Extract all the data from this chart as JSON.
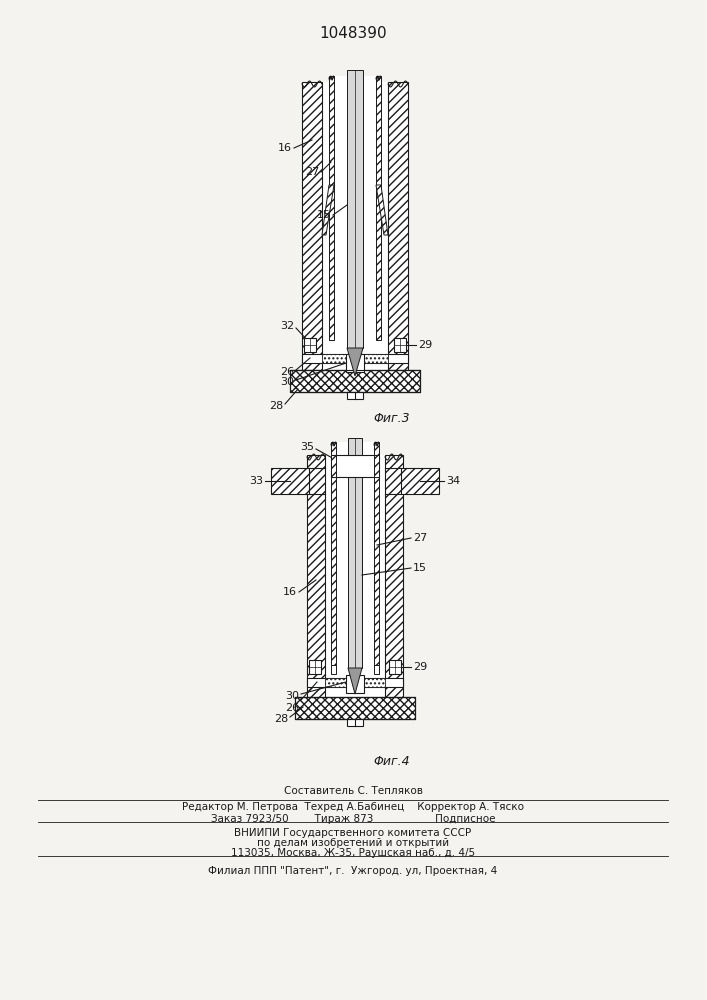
{
  "title": "1048390",
  "fig_width": 7.07,
  "fig_height": 10.0,
  "bg_color": "#f5f3f0",
  "line_color": "#1a1a1a",
  "fig3_label": "Φиг.3",
  "fig4_label": "Φиг.4",
  "footer_texts": [
    "Составитель С. Тепляков",
    "Редактор М. Петрова  Техред А.Бабинец    Корректор А. Тяско",
    "Заказ 7923/50        Тираж 873                   Подписное",
    "ВНИИПИ Государственного комитета СССР",
    "по делам изобретений и открытий",
    "113035, Москва, Ж-35, Раушская наб., д. 4/5",
    "Филиал ППП \"Патент\", г.  Ужгород. ул, Проектная, 4"
  ]
}
